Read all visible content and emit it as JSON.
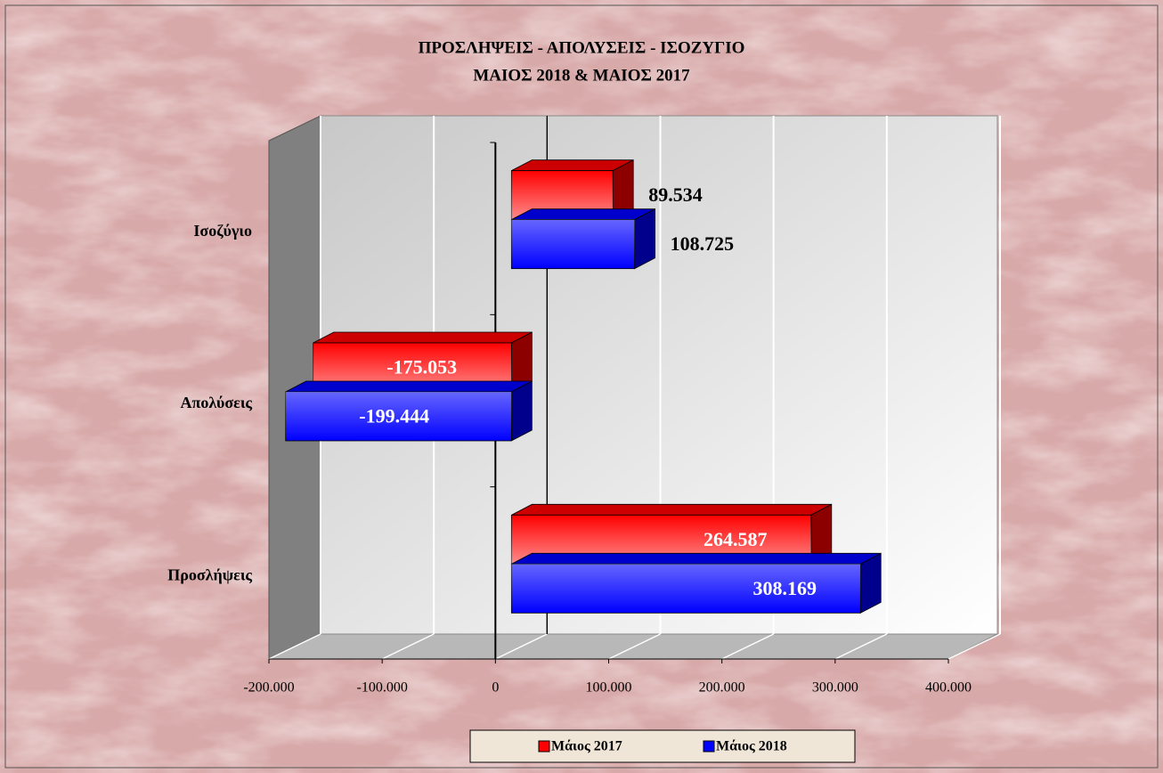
{
  "chart_data": {
    "type": "bar",
    "orientation": "horizontal",
    "title": "ΠΡΟΣΛΗΨΕΙΣ - ΑΠΟΛΥΣΕΙΣ - ΙΣΟΖΥΓΙΟ",
    "subtitle": "ΜΑΙΟΣ  2018  &  ΜΑΙΟΣ  2017",
    "categories": [
      "Προσλήψεις",
      "Απολύσεις",
      "Ισοζύγιο"
    ],
    "series": [
      {
        "name": "Μάιος 2017",
        "color": "#ff0000",
        "values": [
          264587,
          -175053,
          89534
        ],
        "value_labels": [
          "264.587",
          "-175.053",
          "89.534"
        ]
      },
      {
        "name": "Μάιος 2018",
        "color": "#0000ff",
        "values": [
          308169,
          -199444,
          108725
        ],
        "value_labels": [
          "308.169",
          "-199.444",
          "108.725"
        ]
      }
    ],
    "xlim": [
      -200000,
      400000
    ],
    "xticks": [
      {
        "value": -200000,
        "label": "-200.000"
      },
      {
        "value": -100000,
        "label": "-100.000"
      },
      0,
      {
        "value": 100000,
        "label": "100.000"
      },
      {
        "value": 200000,
        "label": "200.000"
      },
      {
        "value": 300000,
        "label": "300.000"
      },
      {
        "value": 400000,
        "label": "400.000"
      }
    ],
    "grid": true,
    "legend": "bottom"
  }
}
